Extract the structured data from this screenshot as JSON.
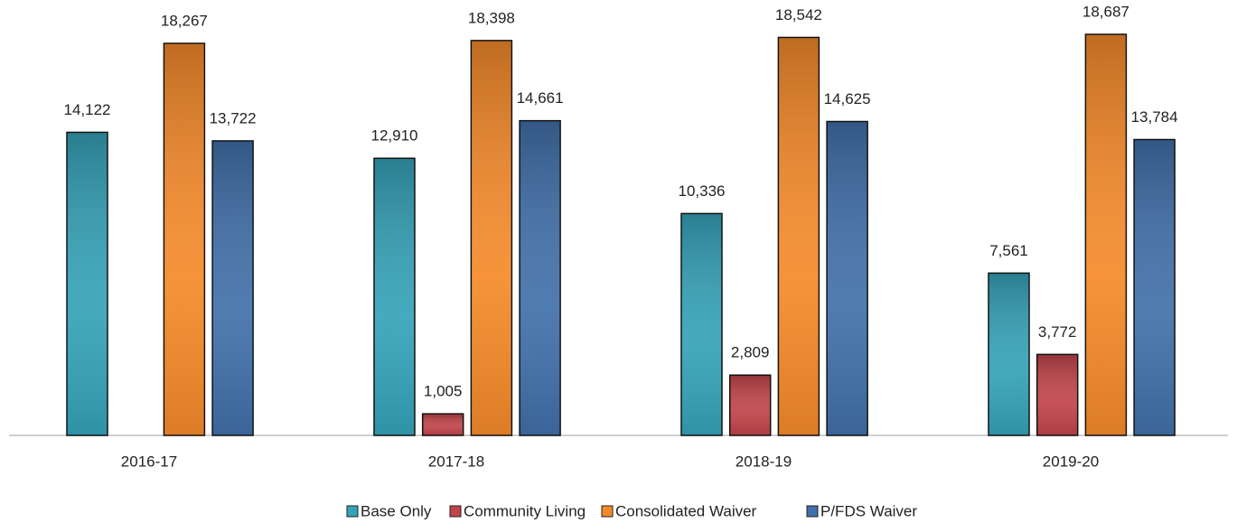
{
  "chart_data": {
    "type": "bar",
    "categories": [
      "2016-17",
      "2017-18",
      "2018-19",
      "2019-20"
    ],
    "series": [
      {
        "name": "Base Only",
        "color": "#35a2b8",
        "values": [
          14122,
          12910,
          10336,
          7561
        ],
        "value_labels": [
          "14,122",
          "12,910",
          "10,336",
          "7,561"
        ]
      },
      {
        "name": "Community Living",
        "color": "#c0444a",
        "values": [
          null,
          1005,
          2809,
          3772
        ],
        "value_labels": [
          null,
          "1,005",
          "2,809",
          "3,772"
        ]
      },
      {
        "name": "Consolidated Waiver",
        "color": "#f58a2a",
        "values": [
          18267,
          18398,
          18542,
          18687
        ],
        "value_labels": [
          "18,267",
          "18,398",
          "18,542",
          "18,687"
        ]
      },
      {
        "name": "P/FDS Waiver",
        "color": "#4170aa",
        "values": [
          13722,
          14661,
          14625,
          13784
        ],
        "value_labels": [
          "13,722",
          "14,661",
          "14,625",
          "13,784"
        ]
      }
    ],
    "legend": "bottom"
  }
}
